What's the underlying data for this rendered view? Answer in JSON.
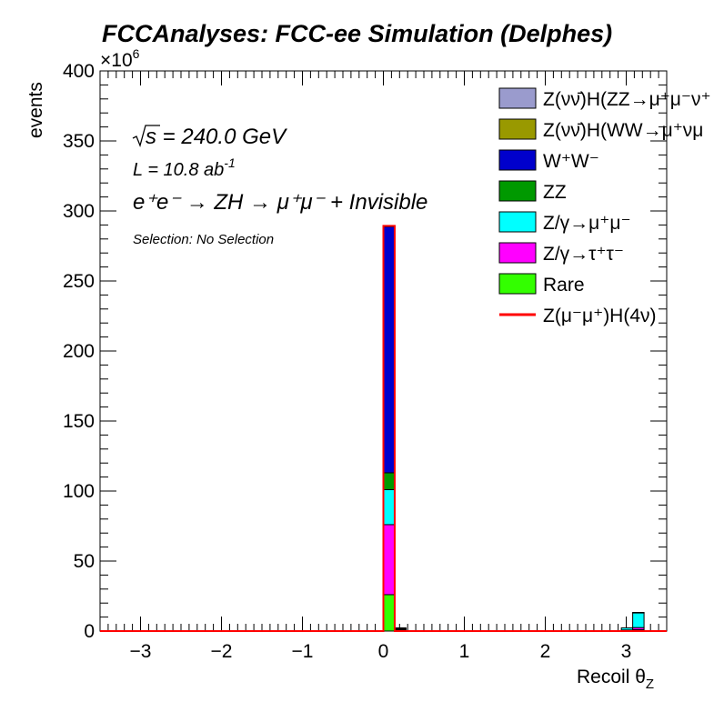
{
  "chart_data": {
    "type": "bar",
    "title": "FCCAnalyses: FCC-ee Simulation (Delphes)",
    "xlabel": "Recoil θ",
    "xlabel_sub": "Z",
    "ylabel": "events",
    "y_exponent_label": "×10",
    "y_exponent_power": "6",
    "xlim": [
      -3.5,
      3.5
    ],
    "ylim": [
      0,
      400
    ],
    "x_ticks": [
      -3,
      -2,
      -1,
      0,
      1,
      2,
      3
    ],
    "x_tick_labels": [
      "−3",
      "−2",
      "−1",
      "0",
      "1",
      "2",
      "3"
    ],
    "y_ticks": [
      0,
      50,
      100,
      150,
      200,
      250,
      300,
      350,
      400
    ],
    "y_tick_labels": [
      "0",
      "50",
      "100",
      "150",
      "200",
      "250",
      "300",
      "350",
      "400"
    ],
    "stacked": true,
    "bin_width": 0.14,
    "x_bin_centers": [
      0.07,
      0.21,
      3.01,
      3.15
    ],
    "series": [
      {
        "name": "Z(νν̄)H(ZZ→μ⁺μ⁻ν⁺",
        "color": "#9a9bcd",
        "values": [
          0.2,
          0.0,
          0.0,
          0.0
        ]
      },
      {
        "name": "Z(νν̄)H(WW→μ⁺νμ",
        "color": "#999900",
        "values": [
          0.2,
          0.0,
          0.0,
          0.0
        ]
      },
      {
        "name": "W⁺W⁻",
        "color": "#0000cc",
        "values": [
          176,
          0.5,
          0.0,
          0.0
        ]
      },
      {
        "name": "ZZ",
        "color": "#009900",
        "values": [
          12,
          0.3,
          0.0,
          0.3
        ]
      },
      {
        "name": "Z/γ→μ⁺μ⁻",
        "color": "#00ffff",
        "values": [
          25,
          0.6,
          1.5,
          10.5
        ]
      },
      {
        "name": "Z/γ→τ⁺τ⁻",
        "color": "#ff00ff",
        "values": [
          50,
          0.5,
          0.5,
          1.5
        ]
      },
      {
        "name": "Rare",
        "color": "#33ff00",
        "values": [
          26,
          0.4,
          0.3,
          1.0
        ]
      }
    ],
    "signal": {
      "name": "Z(μ⁻μ⁺)H(4ν)",
      "color": "#ff0000",
      "values": [
        0.0,
        0.0,
        0.0,
        0.0
      ]
    },
    "annotations": {
      "sqrt_s": "s = 240.0 GeV",
      "lumi": "L = 10.8 ab",
      "lumi_power": "-1",
      "process": "e⁺e⁻ → ZH → μ⁺μ⁻ + Invisible",
      "selection": "Selection: No Selection"
    },
    "legend_position": "top-right"
  }
}
